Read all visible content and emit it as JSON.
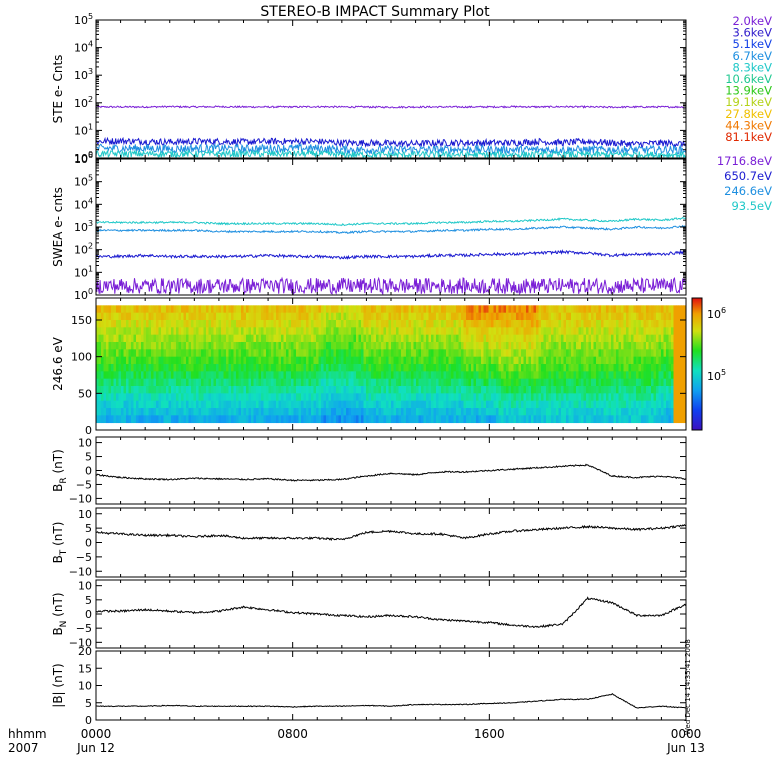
{
  "title": "STEREO-B IMPACT Summary Plot",
  "time_axis": {
    "corner_top": "hhmm",
    "corner_bottom": "2007",
    "ticks": [
      {
        "t": 0,
        "time": "0000",
        "date": "Jun 12"
      },
      {
        "t": 8,
        "time": "0800",
        "date": ""
      },
      {
        "t": 16,
        "time": "1600",
        "date": ""
      },
      {
        "t": 24,
        "time": "0000",
        "date": "Jun 13"
      }
    ]
  },
  "legend_ste": [
    {
      "label": "2.0keV",
      "color": "#7a1fd6"
    },
    {
      "label": "3.6keV",
      "color": "#3320cc"
    },
    {
      "label": "5.1keV",
      "color": "#1240e6"
    },
    {
      "label": "6.7keV",
      "color": "#1e8fe0"
    },
    {
      "label": "8.3keV",
      "color": "#1fc8c8"
    },
    {
      "label": "10.6keV",
      "color": "#1fc890"
    },
    {
      "label": "13.9keV",
      "color": "#2ec81a"
    },
    {
      "label": "19.1keV",
      "color": "#b4d21a"
    },
    {
      "label": "27.8keV",
      "color": "#f0c000"
    },
    {
      "label": "44.3keV",
      "color": "#f07800"
    },
    {
      "label": "81.1keV",
      "color": "#e02800"
    }
  ],
  "legend_swea": [
    {
      "label": "1716.8eV",
      "color": "#7a1fd6"
    },
    {
      "label": "650.7eV",
      "color": "#1a1ad0"
    },
    {
      "label": "246.6eV",
      "color": "#1e8fe0"
    },
    {
      "label": "93.5eV",
      "color": "#1fc8c8"
    }
  ],
  "side_text": "Wed Dec 14 14:35:41 2008",
  "panels": [
    {
      "id": "ste",
      "type": "line",
      "scale": "log",
      "ylabel": "STE e- Cnts",
      "ylim": [
        0,
        5
      ],
      "ticks": [
        {
          "v": 0,
          "exp": "0"
        },
        {
          "v": 1,
          "exp": "1"
        },
        {
          "v": 2,
          "exp": "2"
        },
        {
          "v": 3,
          "exp": "3"
        },
        {
          "v": 4,
          "exp": "4"
        },
        {
          "v": 5,
          "exp": "5"
        }
      ],
      "series": [
        {
          "color": "#7a1fd6",
          "noise": 0.03,
          "values": [
            1.85,
            1.85,
            1.85,
            1.86,
            1.85,
            1.86,
            1.85,
            1.85,
            1.85,
            1.86,
            1.85,
            1.85,
            1.84,
            1.85,
            1.85,
            1.85,
            1.85,
            1.86,
            1.85,
            1.86,
            1.85,
            1.84,
            1.85,
            1.85,
            1.85
          ]
        },
        {
          "color": "#1a1ad0",
          "noise": 0.12,
          "values": [
            0.6,
            0.62,
            0.6,
            0.58,
            0.6,
            0.6,
            0.58,
            0.6,
            0.6,
            0.6,
            0.55,
            0.55,
            0.52,
            0.52,
            0.55,
            0.55,
            0.55,
            0.55,
            0.6,
            0.55,
            0.6,
            0.55,
            0.5,
            0.55,
            0.5
          ]
        },
        {
          "color": "#1e8fe0",
          "noise": 0.15,
          "values": [
            0.35,
            0.35,
            0.35,
            0.33,
            0.35,
            0.35,
            0.33,
            0.35,
            0.35,
            0.35,
            0.3,
            0.3,
            0.3,
            0.3,
            0.3,
            0.32,
            0.3,
            0.3,
            0.3,
            0.3,
            0.3,
            0.3,
            0.3,
            0.3,
            0.3
          ]
        },
        {
          "color": "#1fc8c8",
          "noise": 0.12,
          "values": [
            0.15,
            0.15,
            0.15,
            0.15,
            0.15,
            0.15,
            0.15,
            0.15,
            0.15,
            0.15,
            0.12,
            0.12,
            0.12,
            0.12,
            0.12,
            0.12,
            0.12,
            0.12,
            0.12,
            0.12,
            0.12,
            0.12,
            0.12,
            0.12,
            0.12
          ]
        }
      ]
    },
    {
      "id": "swea",
      "type": "line",
      "scale": "log",
      "ylabel": "SWEA e- cnts",
      "ylim": [
        0,
        6
      ],
      "ticks": [
        {
          "v": 0,
          "exp": "0"
        },
        {
          "v": 1,
          "exp": "1"
        },
        {
          "v": 2,
          "exp": "2"
        },
        {
          "v": 3,
          "exp": "3"
        },
        {
          "v": 4,
          "exp": "4"
        },
        {
          "v": 5,
          "exp": "5"
        },
        {
          "v": 6,
          "exp": "6"
        }
      ],
      "series": [
        {
          "color": "#1fc8c8",
          "noise": 0.04,
          "values": [
            3.2,
            3.2,
            3.2,
            3.2,
            3.2,
            3.15,
            3.15,
            3.15,
            3.15,
            3.15,
            3.1,
            3.15,
            3.15,
            3.15,
            3.2,
            3.2,
            3.25,
            3.25,
            3.3,
            3.35,
            3.3,
            3.25,
            3.35,
            3.3,
            3.4
          ]
        },
        {
          "color": "#1e8fe0",
          "noise": 0.04,
          "values": [
            2.85,
            2.85,
            2.85,
            2.85,
            2.85,
            2.8,
            2.8,
            2.8,
            2.8,
            2.8,
            2.75,
            2.8,
            2.8,
            2.8,
            2.85,
            2.85,
            2.9,
            2.9,
            2.95,
            3.0,
            2.95,
            2.9,
            3.0,
            2.95,
            3.05
          ]
        },
        {
          "color": "#1a1ad0",
          "noise": 0.06,
          "values": [
            1.7,
            1.7,
            1.75,
            1.7,
            1.7,
            1.7,
            1.7,
            1.75,
            1.7,
            1.7,
            1.65,
            1.7,
            1.7,
            1.7,
            1.75,
            1.75,
            1.8,
            1.8,
            1.85,
            1.9,
            1.85,
            1.75,
            1.8,
            1.8,
            1.9
          ]
        },
        {
          "color": "#7a1fd6",
          "noise": 0.35,
          "values": [
            0.4,
            0.4,
            0.4,
            0.4,
            0.4,
            0.4,
            0.4,
            0.4,
            0.4,
            0.4,
            0.4,
            0.4,
            0.4,
            0.4,
            0.4,
            0.4,
            0.4,
            0.4,
            0.4,
            0.4,
            0.4,
            0.4,
            0.4,
            0.4,
            0.4
          ]
        }
      ]
    },
    {
      "id": "pad",
      "type": "heatmap",
      "ylabel": "246.6 eV",
      "ylim": [
        0,
        180
      ],
      "ticks": [
        {
          "v": 0,
          "label": "0"
        },
        {
          "v": 50,
          "label": "50"
        },
        {
          "v": 100,
          "label": "100"
        },
        {
          "v": 150,
          "label": "150"
        }
      ],
      "colorbar": {
        "label_top": "10",
        "exp_top": "6",
        "label_mid": "10",
        "exp_mid": "5"
      }
    },
    {
      "id": "br",
      "type": "line",
      "scale": "linear",
      "ylabel": "B",
      "ysub": "R",
      "yunit": " (nT)",
      "ylim": [
        -12,
        12
      ],
      "ticks": [
        {
          "v": 10,
          "label": "10"
        },
        {
          "v": 5,
          "label": "5"
        },
        {
          "v": 0,
          "label": "0"
        },
        {
          "v": -5,
          "label": "−5"
        },
        {
          "v": -10,
          "label": "−10"
        }
      ],
      "series": [
        {
          "color": "#000000",
          "noise": 0.25,
          "values": [
            -1.5,
            -2.5,
            -3.0,
            -3.2,
            -2.8,
            -3.0,
            -3.2,
            -3.0,
            -3.5,
            -3.5,
            -3.2,
            -2.0,
            -1.0,
            -1.5,
            -0.5,
            -0.5,
            0.0,
            0.5,
            1.0,
            1.5,
            2.0,
            -2.0,
            -2.5,
            -2.0,
            -3.0
          ]
        }
      ]
    },
    {
      "id": "bt",
      "type": "line",
      "scale": "linear",
      "ylabel": "B",
      "ysub": "T",
      "yunit": " (nT)",
      "ylim": [
        -12,
        12
      ],
      "ticks": [
        {
          "v": 10,
          "label": "10"
        },
        {
          "v": 5,
          "label": "5"
        },
        {
          "v": 0,
          "label": "0"
        },
        {
          "v": -5,
          "label": "−5"
        },
        {
          "v": -10,
          "label": "−10"
        }
      ],
      "series": [
        {
          "color": "#000000",
          "noise": 0.35,
          "values": [
            3.5,
            3.0,
            2.5,
            2.5,
            2.0,
            2.5,
            1.5,
            1.5,
            1.5,
            1.5,
            1.0,
            3.5,
            4.0,
            3.0,
            3.0,
            1.5,
            3.0,
            4.0,
            4.5,
            5.0,
            5.5,
            5.0,
            4.5,
            5.0,
            6.0
          ]
        }
      ]
    },
    {
      "id": "bn",
      "type": "line",
      "scale": "linear",
      "ylabel": "B",
      "ysub": "N",
      "yunit": " (nT)",
      "ylim": [
        -12,
        12
      ],
      "ticks": [
        {
          "v": 10,
          "label": "10"
        },
        {
          "v": 5,
          "label": "5"
        },
        {
          "v": 0,
          "label": "0"
        },
        {
          "v": -5,
          "label": "−5"
        },
        {
          "v": -10,
          "label": "−10"
        }
      ],
      "series": [
        {
          "color": "#000000",
          "noise": 0.35,
          "values": [
            1.0,
            1.0,
            1.5,
            1.0,
            0.5,
            1.0,
            2.5,
            1.5,
            0.5,
            0.0,
            -0.5,
            -1.0,
            -0.5,
            -1.0,
            -2.0,
            -2.5,
            -3.0,
            -4.0,
            -4.5,
            -3.5,
            5.5,
            4.0,
            -0.5,
            -0.5,
            3.5
          ]
        }
      ]
    },
    {
      "id": "bmag",
      "type": "line",
      "scale": "linear",
      "ylabel": "|B| (nT)",
      "ylim": [
        0,
        20
      ],
      "ticks": [
        {
          "v": 20,
          "label": "20"
        },
        {
          "v": 15,
          "label": "15"
        },
        {
          "v": 10,
          "label": "10"
        },
        {
          "v": 5,
          "label": "5"
        },
        {
          "v": 0,
          "label": "0"
        }
      ],
      "series": [
        {
          "color": "#000000",
          "noise": 0.12,
          "values": [
            4.0,
            4.0,
            4.0,
            4.2,
            4.0,
            4.0,
            4.0,
            4.0,
            3.8,
            4.0,
            4.0,
            4.2,
            4.0,
            4.5,
            4.5,
            4.5,
            4.8,
            5.0,
            5.5,
            6.0,
            6.0,
            7.5,
            3.5,
            4.0,
            3.5
          ]
        }
      ]
    }
  ]
}
